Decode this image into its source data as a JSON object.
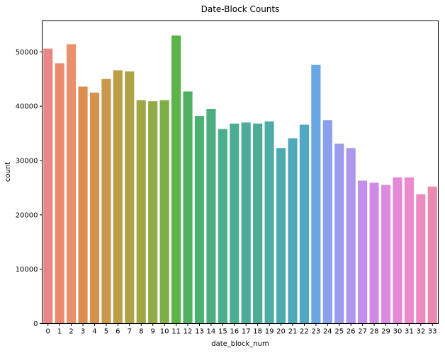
{
  "chart_data": {
    "type": "bar",
    "title": "Date-Block Counts",
    "xlabel": "date_block_num",
    "ylabel": "count",
    "categories": [
      "0",
      "1",
      "2",
      "3",
      "4",
      "5",
      "6",
      "7",
      "8",
      "9",
      "10",
      "11",
      "12",
      "13",
      "14",
      "15",
      "16",
      "17",
      "18",
      "19",
      "20",
      "21",
      "22",
      "23",
      "24",
      "25",
      "26",
      "27",
      "28",
      "29",
      "30",
      "31",
      "32",
      "33"
    ],
    "values": [
      50600,
      47900,
      51400,
      43600,
      42500,
      45000,
      46600,
      46400,
      41100,
      40900,
      41100,
      53000,
      42700,
      38200,
      39500,
      35800,
      36800,
      37000,
      36800,
      37200,
      32300,
      34100,
      36600,
      47600,
      37400,
      33100,
      32300,
      26300,
      25900,
      25500,
      26900,
      26900,
      23800,
      25200
    ],
    "ylim": [
      0,
      55700
    ],
    "yticks": [
      0,
      10000,
      20000,
      30000,
      40000,
      50000
    ],
    "grid": false,
    "legend": "none",
    "colors": [
      "#ea8685",
      "#ea8b6f",
      "#e9906c",
      "#db8d4e",
      "#d6914d",
      "#c9984a",
      "#bd9e48",
      "#b0a247",
      "#a1a647",
      "#91ab47",
      "#7eaf47",
      "#5cb349",
      "#4eb161",
      "#4db074",
      "#4daf80",
      "#4cae8b",
      "#4dad94",
      "#4eac9d",
      "#4fab97",
      "#4faba6",
      "#4daab0",
      "#4fa9ba",
      "#51a8c6",
      "#6aa5e4",
      "#8aa0ea",
      "#9b9ceb",
      "#ac97ec",
      "#c28fec",
      "#d08ae6",
      "#dc8ae0",
      "#e48ad9",
      "#e98bcd",
      "#eb8bbf",
      "#ea8ab1"
    ]
  }
}
